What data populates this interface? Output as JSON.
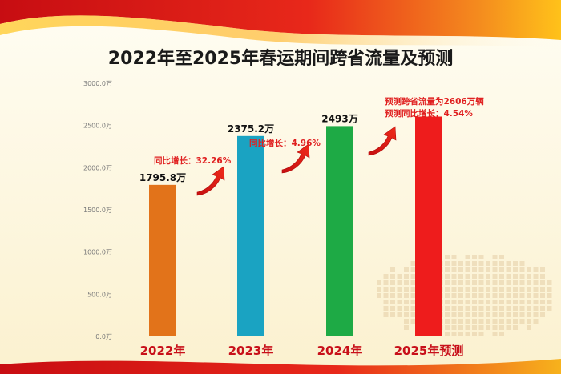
{
  "chart_data": {
    "type": "bar",
    "title": "2022年至2025年春运期间跨省流量及预测",
    "categories": [
      "2022年",
      "2023年",
      "2024年",
      "2025年预测"
    ],
    "values": [
      1795.8,
      2375.2,
      2493,
      2606
    ],
    "value_labels": [
      "1795.8万",
      "2375.2万",
      "2493万",
      ""
    ],
    "bar_colors": [
      "#e2731a",
      "#1aa3c2",
      "#1eaa45",
      "#ee1c1c"
    ],
    "yticks": [
      "0.0万",
      "500.0万",
      "1000.0万",
      "1500.0万",
      "2000.0万",
      "2500.0万",
      "3000.0万"
    ],
    "ylim": [
      0,
      3000
    ],
    "grid": false,
    "annotations": [
      {
        "text": "同比增长：32.26%",
        "color": "#e02020"
      },
      {
        "text": "同比增长：4.96%",
        "color": "#e02020"
      },
      {
        "text": "预测跨省流量为2606万辆",
        "color": "#e02020"
      },
      {
        "text": "预测同比增长：4.54%",
        "color": "#e02020"
      }
    ]
  },
  "colors": {
    "title": "#1a1a1a",
    "category_label": "#c8101a",
    "tick_label": "#7a7a7a",
    "arrow": "#e51a1a"
  }
}
